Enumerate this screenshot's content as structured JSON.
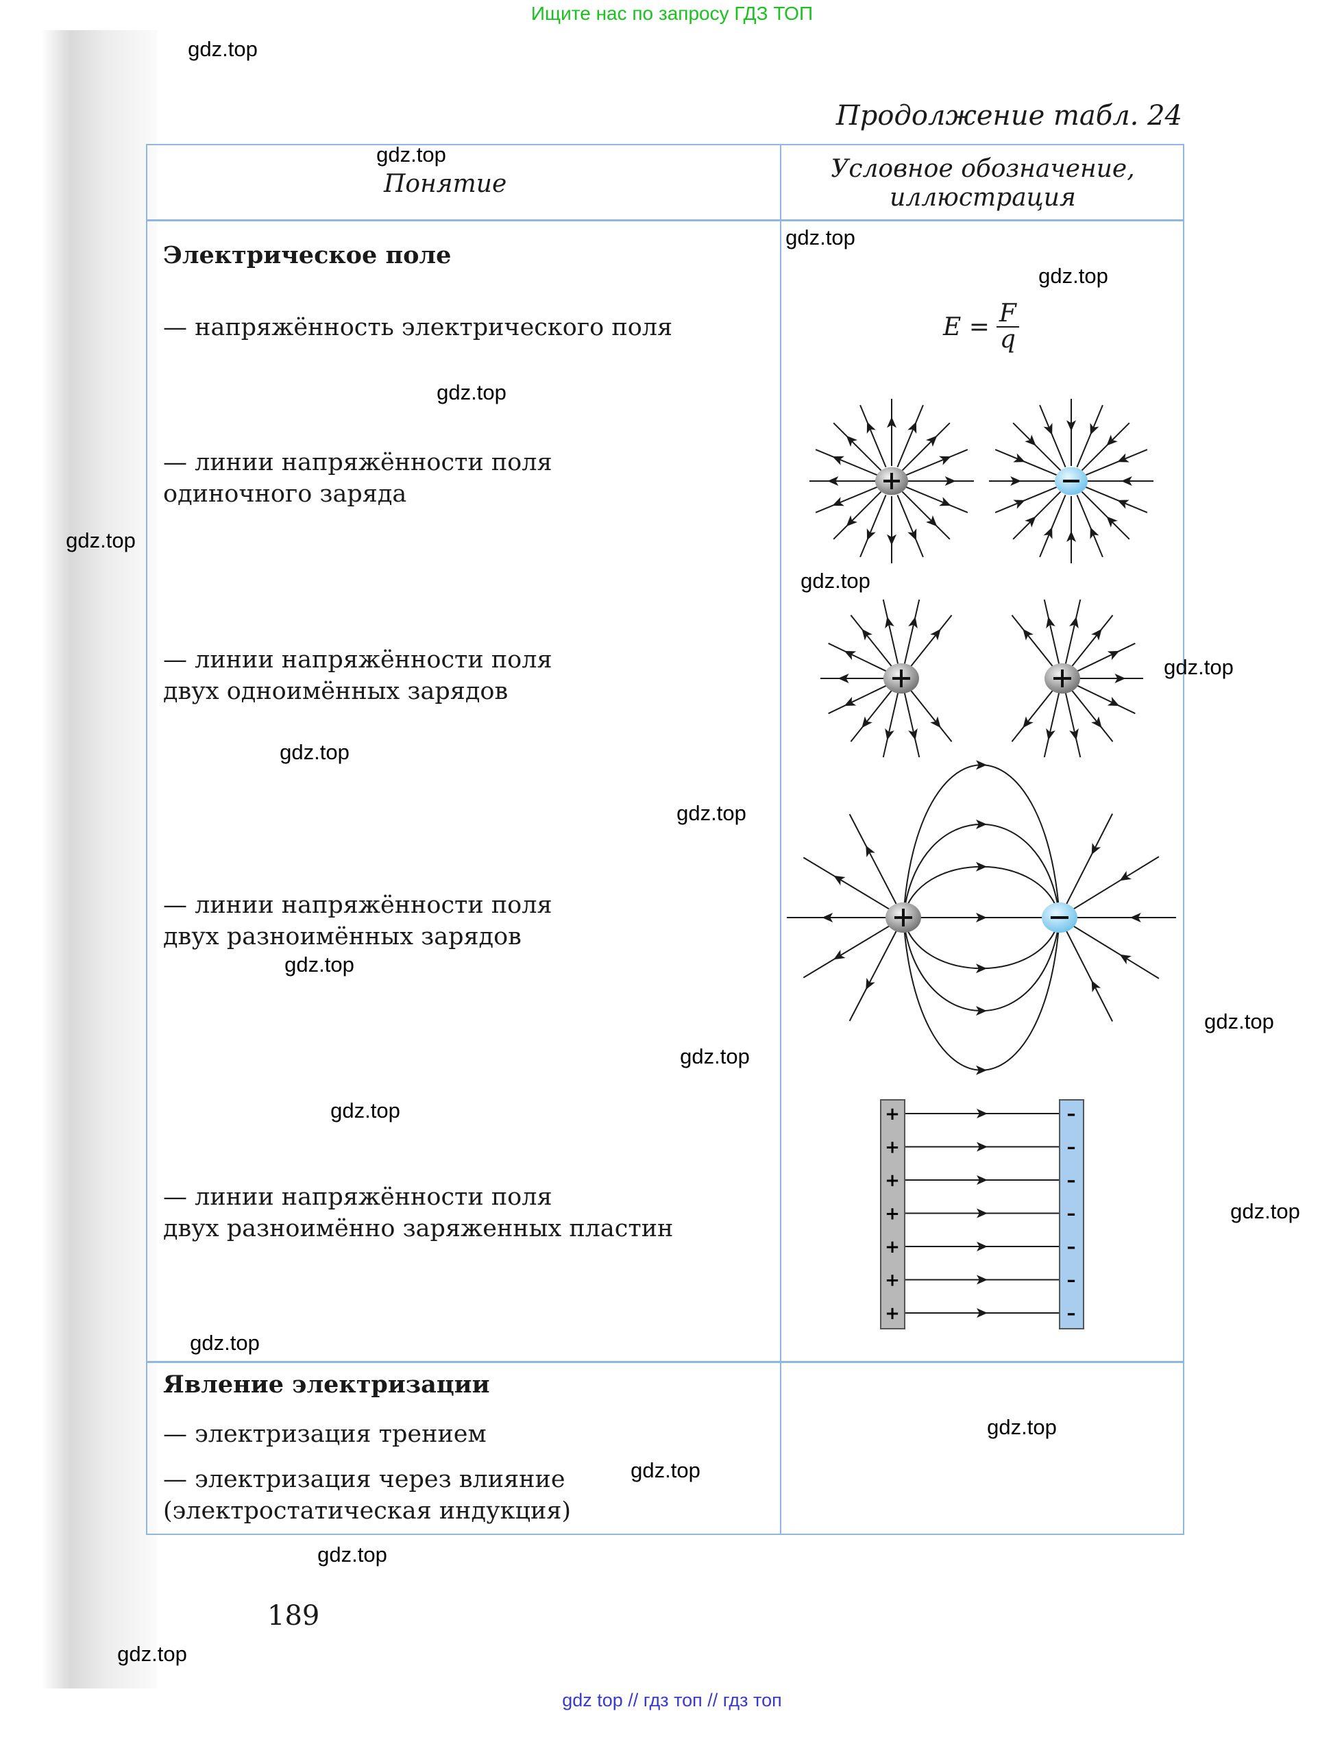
{
  "banner": "Ищите нас по запросу ГДЗ ТОП",
  "caption": "Продолжение табл. 24",
  "table": {
    "headers": [
      "Понятие",
      "Условное обозначение,",
      "иллюстрация"
    ],
    "rows": [
      {
        "lines": [
          "Электрическое поле"
        ],
        "bold": true
      },
      {
        "lines": [
          "— напряжённость электрического поля"
        ]
      },
      {
        "lines": [
          "— линии напряжённости поля",
          "одиночного заряда"
        ]
      },
      {
        "lines": [
          "— линии напряжённости поля",
          "двух одноимённых зарядов"
        ]
      },
      {
        "lines": [
          "— линии напряжённости поля",
          "двух разноимённых зарядов"
        ]
      },
      {
        "lines": [
          "— линии напряжённости поля",
          "двух разноимённо заряженных пластин"
        ]
      },
      {
        "lines": [
          "Явление электризации"
        ],
        "bold": true
      },
      {
        "lines": [
          "— электризация трением"
        ]
      },
      {
        "lines": [
          "— электризация через влияние",
          "(электростатическая индукция)"
        ]
      }
    ],
    "formula": {
      "lhs": "E =",
      "num": "F",
      "den": "q"
    }
  },
  "colors": {
    "border": "#8fb8e0",
    "positive_charge": "#8a8a8a",
    "negative_charge": "#8fd0f0",
    "banner": "#19c21e",
    "footer": "#3a3acd"
  },
  "page_number": "189",
  "watermark": "gdz.top",
  "footer": "gdz top  //  гдз топ  //  гдз топ"
}
